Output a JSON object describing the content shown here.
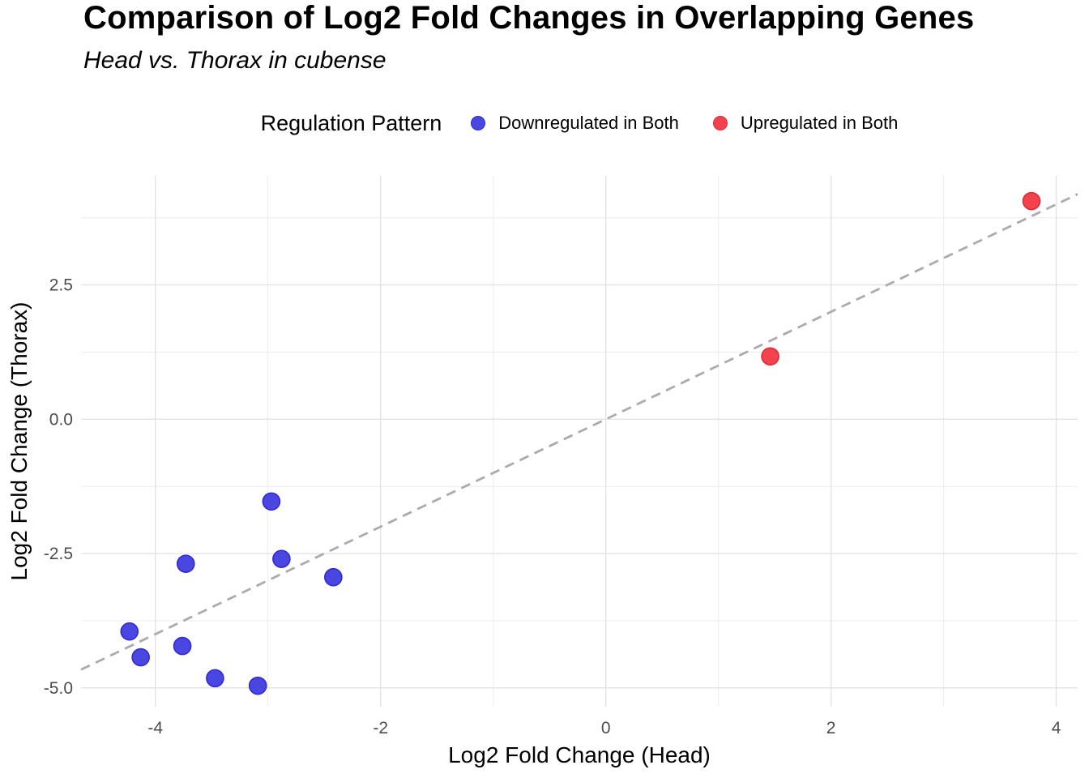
{
  "chart_data": {
    "type": "scatter",
    "title": "Comparison of Log2 Fold Changes in Overlapping Genes",
    "subtitle": "Head vs. Thorax in cubense",
    "xlabel": "Log2 Fold Change (Head)",
    "ylabel": "Log2 Fold Change (Thorax)",
    "xlim": [
      -4.66,
      4.19
    ],
    "ylim": [
      -5.35,
      4.53
    ],
    "x_ticks": [
      -4,
      -2,
      0,
      2,
      4
    ],
    "x_tick_labels": [
      "-4",
      "-2",
      "0",
      "2",
      "4"
    ],
    "x_minor_ticks": [
      -3,
      -1,
      1,
      3
    ],
    "y_ticks": [
      2.5,
      0,
      -2.5,
      -5
    ],
    "y_tick_labels": [
      "2.5",
      "0.0",
      "-2.5",
      "-5.0"
    ],
    "y_minor_ticks": [
      3.75,
      1.25,
      -1.25,
      -3.75
    ],
    "grid": true,
    "legend_title": "Regulation Pattern",
    "legend_position": "top",
    "reference_line": {
      "type": "identity",
      "equation": "y = x",
      "style": "dashed",
      "color": "#ababab"
    },
    "colors": {
      "grid_major": "#e3e3e3",
      "grid_minor": "#ececec",
      "tick_label": "#4d4d4d"
    },
    "series": [
      {
        "name": "Downregulated in Both",
        "color": "#4a46e2",
        "stroke": "#2f2bd0",
        "points": [
          [
            -2.97,
            -1.53
          ],
          [
            -2.88,
            -2.6
          ],
          [
            -3.73,
            -2.69
          ],
          [
            -2.42,
            -2.94
          ],
          [
            -4.23,
            -3.95
          ],
          [
            -3.76,
            -4.22
          ],
          [
            -4.13,
            -4.43
          ],
          [
            -3.47,
            -4.82
          ],
          [
            -3.09,
            -4.96
          ]
        ]
      },
      {
        "name": "Upregulated in Both",
        "color": "#f3424d",
        "stroke": "#d92d3b",
        "points": [
          [
            1.46,
            1.17
          ],
          [
            3.78,
            4.06
          ]
        ]
      }
    ]
  }
}
